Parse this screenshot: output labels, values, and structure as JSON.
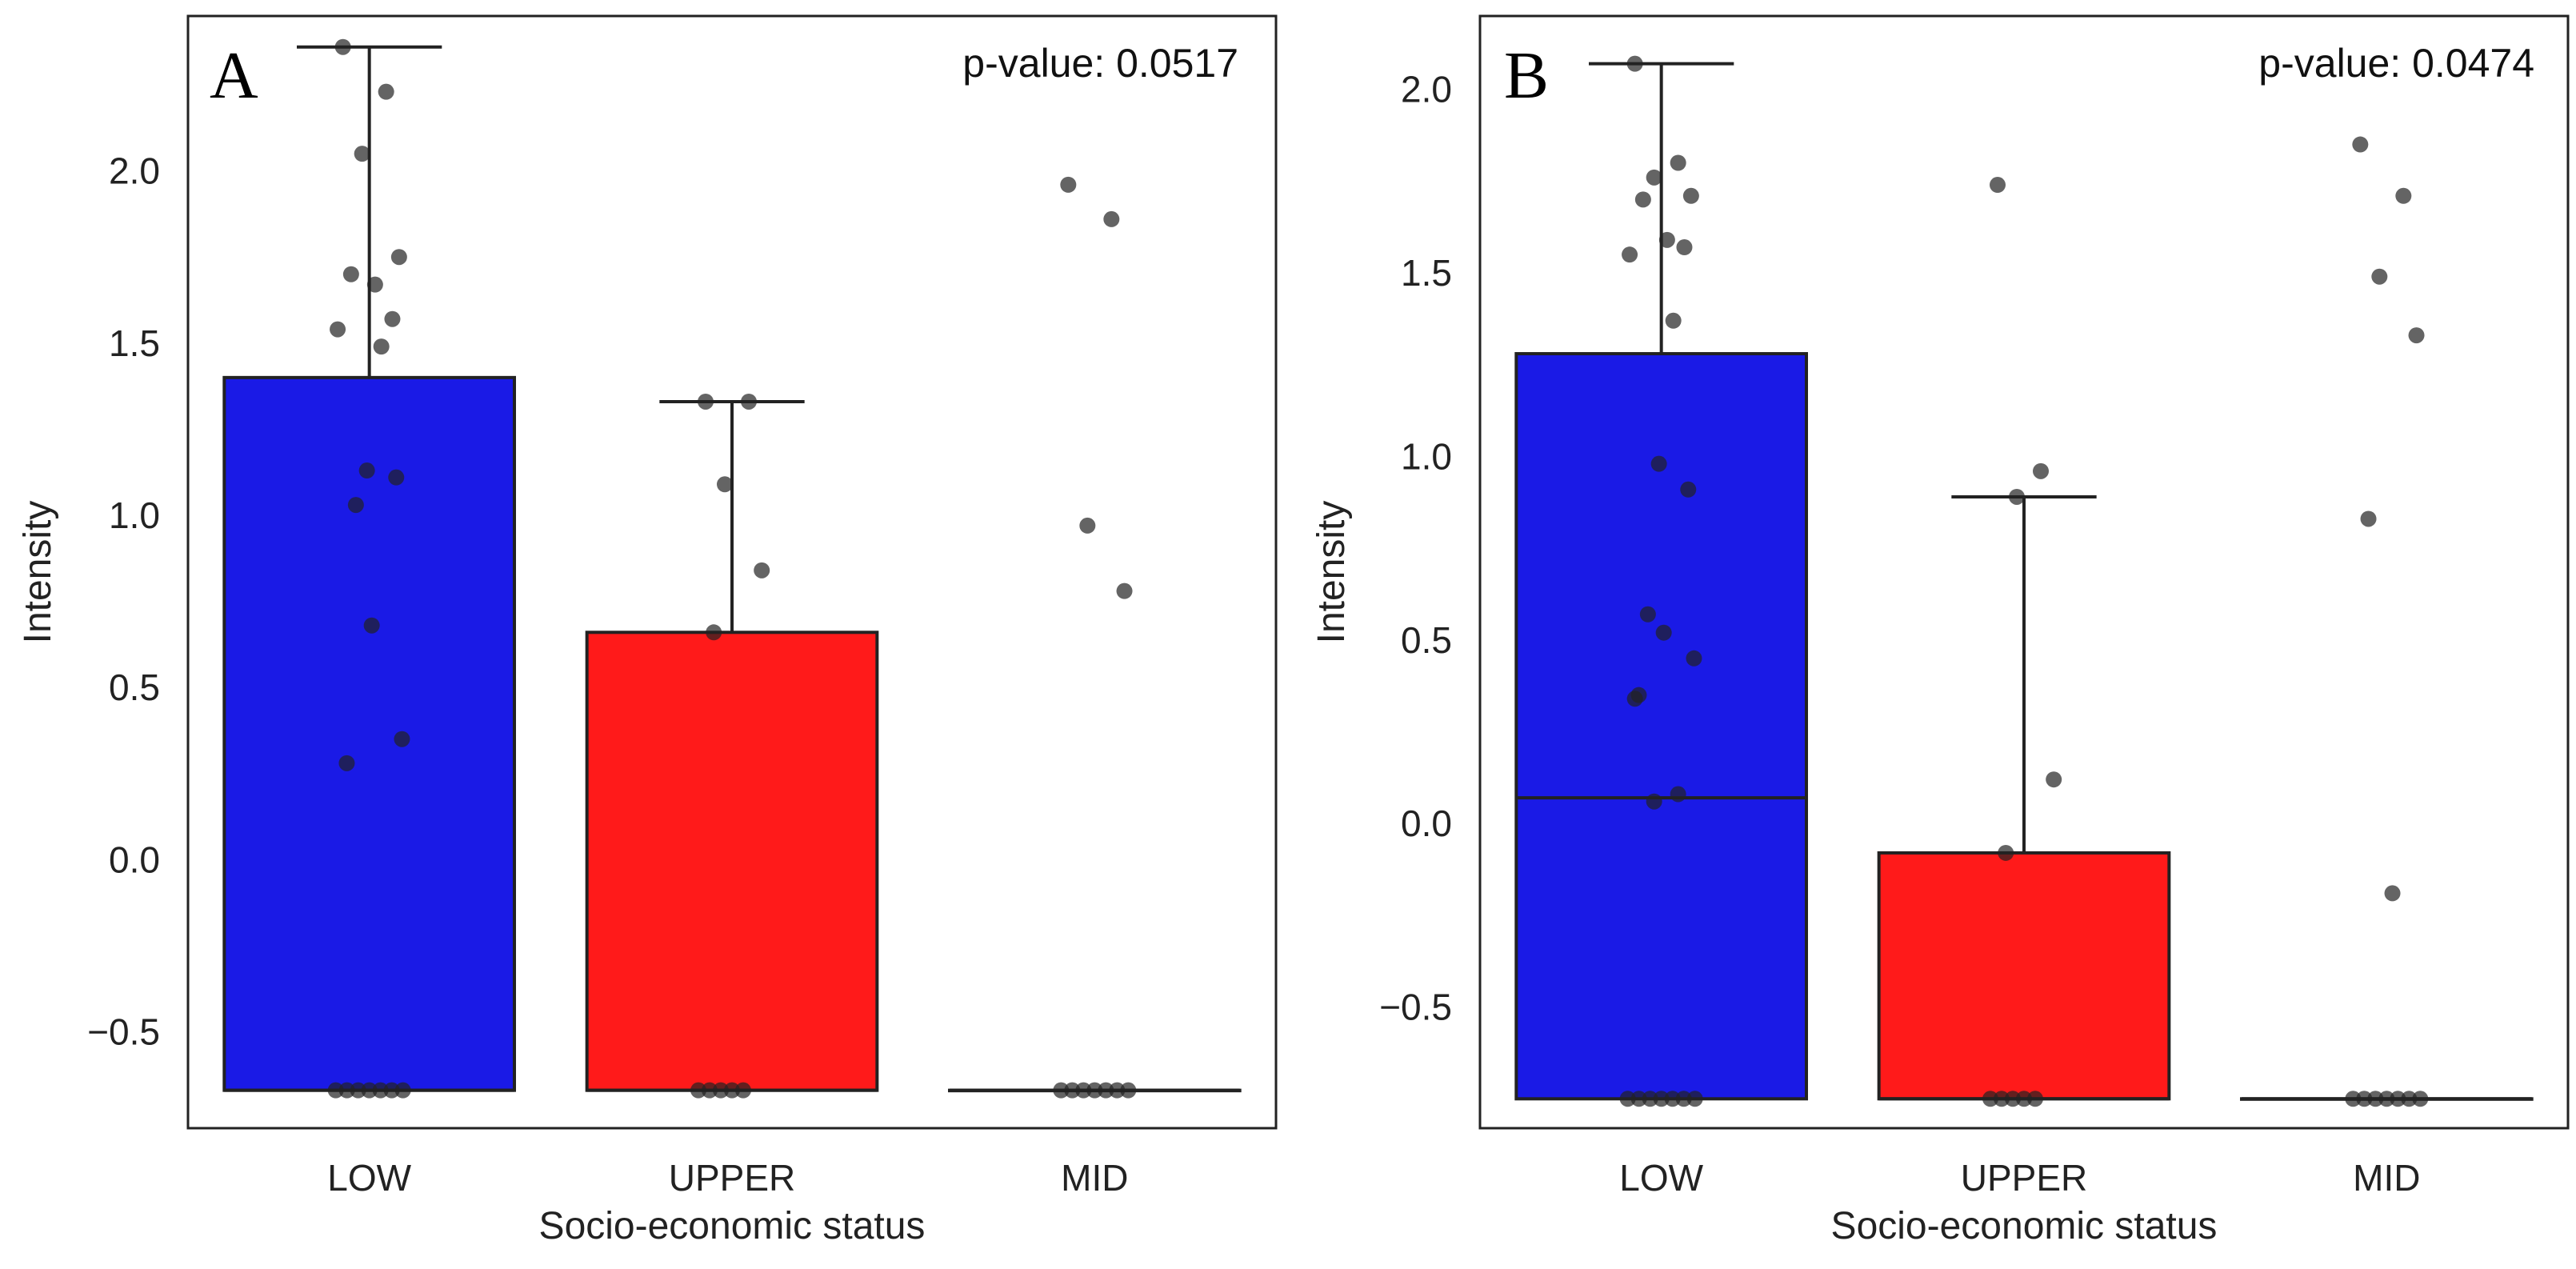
{
  "chart_data": [
    {
      "type": "boxplot",
      "panel_label": "A",
      "annotation": "p-value: 0.0517",
      "xlabel": "Socio-economic status",
      "ylabel": "Intensity",
      "categories": [
        "LOW",
        "UPPER",
        "MID"
      ],
      "colors": [
        "#1a1ae6",
        "#ff1a1a",
        "#ffffff"
      ],
      "ylim": [
        -0.78,
        2.45
      ],
      "yticks": [
        -0.5,
        0.0,
        0.5,
        1.0,
        1.5,
        2.0
      ],
      "ytick_labels": [
        "−0.5",
        "0.0",
        "0.5",
        "1.0",
        "1.5",
        "2.0"
      ],
      "boxes": [
        {
          "category": "LOW",
          "q1": -0.67,
          "median": -0.67,
          "q3": 1.4,
          "whisker_low": -0.67,
          "whisker_high": 2.36
        },
        {
          "category": "UPPER",
          "q1": -0.67,
          "median": -0.67,
          "q3": 0.66,
          "whisker_low": -0.67,
          "whisker_high": 1.33
        },
        {
          "category": "MID",
          "q1": -0.67,
          "median": -0.67,
          "q3": -0.67,
          "whisker_low": -0.67,
          "whisker_high": -0.67
        }
      ],
      "points": [
        {
          "category": "LOW",
          "values": [
            2.36,
            2.23,
            2.05,
            1.75,
            1.7,
            1.67,
            1.57,
            1.54,
            1.49,
            1.13,
            1.11,
            1.03,
            0.68,
            0.35,
            0.28,
            -0.67,
            -0.67,
            -0.67,
            -0.67,
            -0.67,
            -0.67,
            -0.67
          ]
        },
        {
          "category": "UPPER",
          "values": [
            1.33,
            1.33,
            1.09,
            0.84,
            0.66,
            -0.67,
            -0.67,
            -0.67,
            -0.67,
            -0.67
          ]
        },
        {
          "category": "MID",
          "values": [
            1.96,
            1.86,
            0.97,
            0.78,
            -0.67,
            -0.67,
            -0.67,
            -0.67,
            -0.67,
            -0.67,
            -0.67
          ]
        }
      ]
    },
    {
      "type": "boxplot",
      "panel_label": "B",
      "annotation": "p-value: 0.0474",
      "xlabel": "Socio-economic status",
      "ylabel": "Intensity",
      "categories": [
        "LOW",
        "UPPER",
        "MID"
      ],
      "colors": [
        "#1a1ae6",
        "#ff1a1a",
        "#ffffff"
      ],
      "ylim": [
        -0.83,
        2.2
      ],
      "yticks": [
        -0.5,
        0.0,
        0.5,
        1.0,
        1.5,
        2.0
      ],
      "ytick_labels": [
        "−0.5",
        "0.0",
        "0.5",
        "1.0",
        "1.5",
        "2.0"
      ],
      "boxes": [
        {
          "category": "LOW",
          "q1": -0.75,
          "median": 0.07,
          "q3": 1.28,
          "whisker_low": -0.75,
          "whisker_high": 2.07
        },
        {
          "category": "UPPER",
          "q1": -0.75,
          "median": -0.75,
          "q3": -0.08,
          "whisker_low": -0.75,
          "whisker_high": 0.89
        },
        {
          "category": "MID",
          "q1": -0.75,
          "median": -0.75,
          "q3": -0.75,
          "whisker_low": -0.75,
          "whisker_high": -0.75
        }
      ],
      "points": [
        {
          "category": "LOW",
          "values": [
            2.07,
            1.8,
            1.76,
            1.71,
            1.7,
            1.59,
            1.57,
            1.55,
            1.37,
            0.98,
            0.91,
            0.57,
            0.52,
            0.45,
            0.35,
            0.34,
            0.08,
            0.06,
            -0.75,
            -0.75,
            -0.75,
            -0.75,
            -0.75,
            -0.75,
            -0.75
          ]
        },
        {
          "category": "UPPER",
          "values": [
            1.74,
            0.96,
            0.89,
            0.12,
            -0.08,
            -0.75,
            -0.75,
            -0.75,
            -0.75,
            -0.75
          ]
        },
        {
          "category": "MID",
          "values": [
            1.85,
            1.71,
            1.49,
            1.33,
            0.83,
            -0.19,
            -0.75,
            -0.75,
            -0.75,
            -0.75,
            -0.75,
            -0.75,
            -0.75
          ]
        }
      ]
    }
  ]
}
